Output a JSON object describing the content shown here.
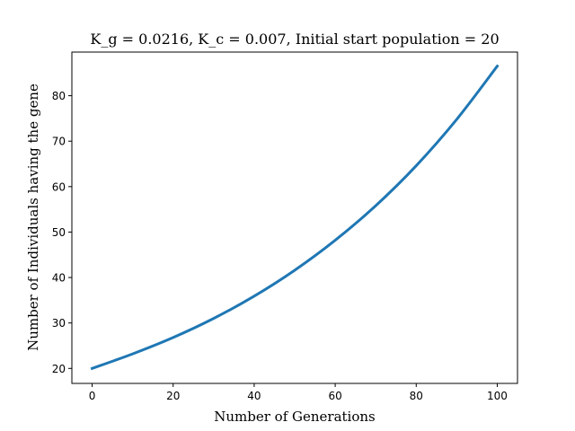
{
  "chart_data": {
    "type": "line",
    "title": "K_g = 0.0216, K_c = 0.007, Initial start population = 20",
    "xlabel": "Number of Generations",
    "ylabel": "Number of Individuals having the gene",
    "xlim": [
      -5,
      105
    ],
    "ylim": [
      16.7,
      89.6
    ],
    "xticks": [
      0,
      20,
      40,
      60,
      80,
      100
    ],
    "yticks": [
      20,
      30,
      40,
      50,
      60,
      70,
      80
    ],
    "grid": false,
    "series": [
      {
        "color": "#1f77b4",
        "x": [
          0,
          10,
          20,
          30,
          40,
          50,
          60,
          70,
          80,
          90,
          100
        ],
        "y": [
          20.0,
          23.2,
          26.8,
          31.0,
          35.9,
          41.6,
          48.2,
          55.8,
          64.6,
          74.8,
          86.5
        ]
      }
    ]
  }
}
